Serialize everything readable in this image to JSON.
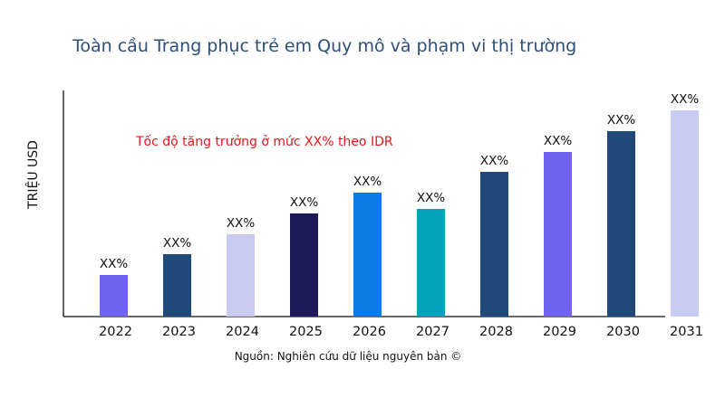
{
  "chart_data": {
    "type": "bar",
    "title": "Toàn cầu Trang phục trẻ em Quy mô và phạm vi thị trường",
    "ylabel": "TRIỆU USD",
    "xlabel": "",
    "categories": [
      "2022",
      "2023",
      "2024",
      "2025",
      "2026",
      "2027",
      "2028",
      "2029",
      "2030",
      "2031"
    ],
    "values": [
      46,
      69,
      91,
      114,
      137,
      119,
      160,
      182,
      205,
      228
    ],
    "data_labels": [
      "XX%",
      "XX%",
      "XX%",
      "XX%",
      "XX%",
      "XX%",
      "XX%",
      "XX%",
      "XX%",
      "XX%"
    ],
    "colors": [
      "#7064f0",
      "#1f4a7a",
      "#c9caf0",
      "#1e1a57",
      "#0e7ae6",
      "#00a3b9",
      "#1f4a7a",
      "#7064f0",
      "#1f4a7a",
      "#c9caf0"
    ],
    "annotation": "Tốc độ tăng trưởng ở mức XX% theo IDR",
    "annotation_color": "#e8141b",
    "ylim": [
      0,
      250
    ],
    "grid": false,
    "y_ticks_shown": false
  },
  "source": "Nguồn: Nghiên cứu dữ liệu nguyên bản ©"
}
